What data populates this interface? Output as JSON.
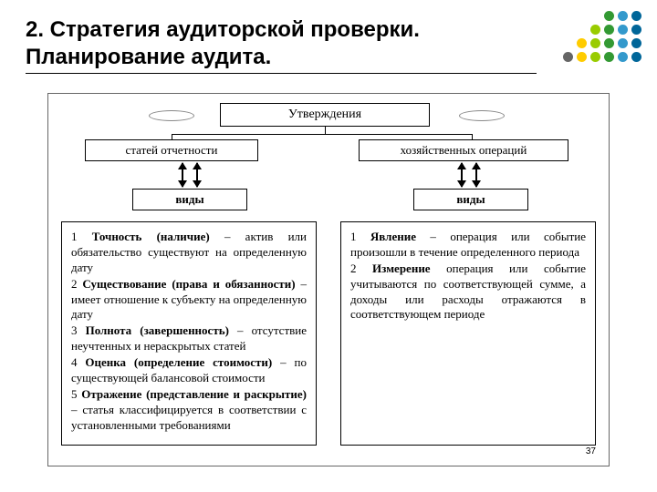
{
  "title": "2. Стратегия аудиторской проверки. Планирование аудита.",
  "page_number": "37",
  "dots": {
    "colors_by_column": [
      "#666666",
      "#ffcc00",
      "#99cc00",
      "#339933",
      "#3399cc",
      "#006699"
    ],
    "fill_mask": [
      [
        0,
        0,
        0,
        1,
        1,
        1
      ],
      [
        0,
        0,
        1,
        1,
        1,
        1
      ],
      [
        0,
        1,
        1,
        1,
        1,
        1
      ],
      [
        1,
        1,
        1,
        1,
        1,
        1
      ],
      [
        0,
        0,
        0,
        0,
        0,
        0
      ],
      [
        0,
        0,
        0,
        0,
        0,
        0
      ]
    ]
  },
  "boxes": {
    "top": "Утверждения",
    "left_category": "статей отчетности",
    "right_category": "хозяйственных операций",
    "types_left": "виды",
    "types_right": "виды"
  },
  "columns": {
    "left": [
      "1 Точность (наличие) – актив или обязательство существуют на определенную дату",
      "2 Существование (права и обязанности) – имеет отношение к субъекту на определенную дату",
      "3 Полнота (завершенность) – отсутствие неучтенных и нераскрытых статей",
      "4 Оценка (определение стоимости) – по существующей балансовой стоимости",
      "5 Отражение (представление и раскрытие) – статья классифицируется в соответствии с установленными требованиями"
    ],
    "right": [
      "1 Явление – операция или событие произошли в течение определенного периода",
      "2 Измерение операция или событие учитываются по соответствующей сумме, а доходы или расходы отражаются в соответствующем периоде"
    ]
  },
  "styling": {
    "title_fontsize": 24,
    "title_color": "#000000",
    "box_border_color": "#000000",
    "diagram_border_color": "#666666",
    "body_font": "Times New Roman",
    "header_font": "Arial",
    "background_color": "#ffffff",
    "column_fontsize": 13
  }
}
